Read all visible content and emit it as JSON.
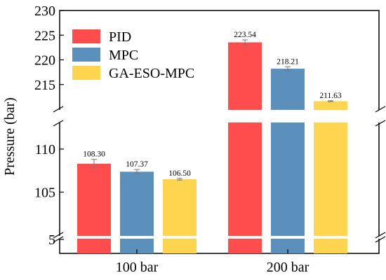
{
  "chart_data": {
    "type": "bar",
    "title": "",
    "xlabel": "",
    "ylabel": "Pressure (bar)",
    "categories": [
      "100 bar",
      "200 bar"
    ],
    "series": [
      {
        "name": "PID",
        "color": "#ff4d4d",
        "values": [
          108.3,
          223.54
        ],
        "labels": [
          "108.30",
          "223.54"
        ],
        "error": [
          0.5,
          0.5
        ]
      },
      {
        "name": "MPC",
        "color": "#5b90bd",
        "values": [
          107.37,
          218.21
        ],
        "labels": [
          "107.37",
          "218.21"
        ],
        "error": [
          0.25,
          0.4
        ]
      },
      {
        "name": "GA-ESO-MPC",
        "color": "#ffd54f",
        "values": [
          106.5,
          211.63
        ],
        "labels": [
          "106.50",
          "211.63"
        ],
        "error": [
          0.1,
          0.1
        ]
      }
    ],
    "axis_break": true,
    "y_segments": [
      {
        "range": [
          0,
          5
        ],
        "ticks": [
          "5"
        ]
      },
      {
        "range": [
          100,
          113
        ],
        "ticks": [
          "105",
          "110"
        ]
      },
      {
        "range": [
          210,
          230
        ],
        "ticks": [
          "215",
          "220",
          "225",
          "230"
        ]
      }
    ],
    "legend_position": "top-left",
    "grid": false
  }
}
